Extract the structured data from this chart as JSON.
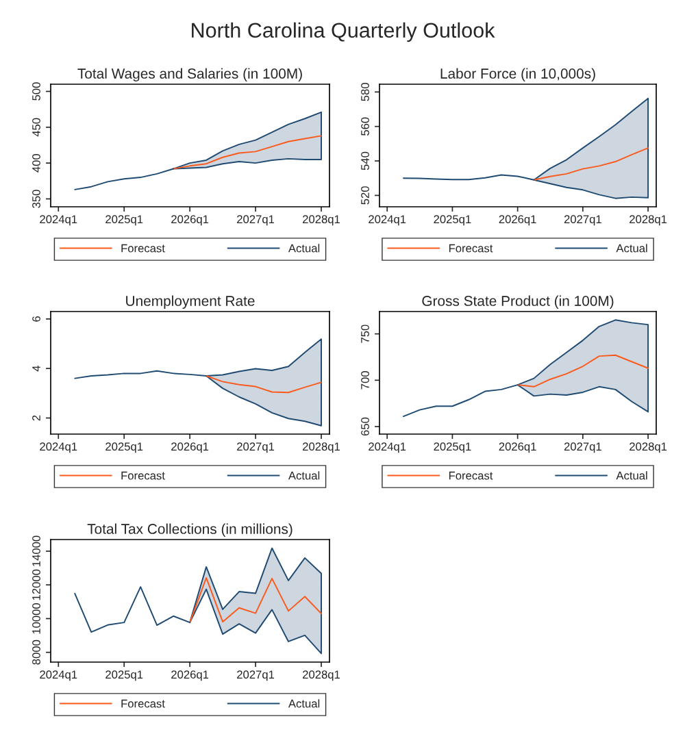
{
  "chart_data": [
    {
      "type": "line",
      "title": "Total Wages and Salaries (in 100M)",
      "annotations": [
        "North Carolina Quarterly Outlook"
      ],
      "categories": [
        "2024q1",
        null,
        null,
        null,
        "2025q1",
        null,
        null,
        null,
        "2026q1",
        null,
        null,
        null,
        "2027q1",
        null,
        null,
        null,
        "2028q1"
      ],
      "ylim": [
        339,
        510
      ],
      "yticks": [
        350,
        400,
        450,
        500
      ],
      "legend": "bottom",
      "series": [
        {
          "name": "Forecast",
          "color": "#fc5a1c",
          "values": [
            null,
            null,
            null,
            null,
            null,
            null,
            null,
            392,
            396,
            399,
            408,
            414,
            416,
            423,
            430,
            434,
            438
          ],
          "lower": [
            null,
            null,
            null,
            null,
            null,
            null,
            null,
            392,
            393,
            394,
            399,
            402,
            400,
            404,
            406,
            405,
            405
          ],
          "upper": [
            null,
            null,
            null,
            null,
            null,
            null,
            null,
            392,
            400,
            404,
            417,
            426,
            432,
            443,
            454,
            462,
            471
          ]
        },
        {
          "name": "Actual",
          "color": "#1f4a72",
          "values": [
            null,
            363,
            367,
            374,
            378,
            380,
            385,
            392,
            null,
            null,
            null,
            null,
            null,
            null,
            null,
            null,
            null
          ]
        }
      ]
    },
    {
      "type": "line",
      "title": "Labor Force (in 10,000s)",
      "categories": [
        "2024q1",
        null,
        null,
        null,
        "2025q1",
        null,
        null,
        null,
        "2026q1",
        null,
        null,
        null,
        "2027q1",
        null,
        null,
        null,
        "2028q1"
      ],
      "ylim": [
        513.4,
        584.5
      ],
      "yticks": [
        520,
        540,
        560,
        580
      ],
      "legend": "bottom",
      "series": [
        {
          "name": "Forecast",
          "color": "#fc5a1c",
          "values": [
            null,
            null,
            null,
            null,
            null,
            null,
            null,
            null,
            null,
            529,
            531,
            532.5,
            535.4,
            537.1,
            539.6,
            543.6,
            547.5
          ],
          "lower": [
            null,
            null,
            null,
            null,
            null,
            null,
            null,
            null,
            null,
            529,
            526.8,
            524.6,
            523.2,
            520.4,
            518.3,
            519,
            518.7
          ],
          "upper": [
            null,
            null,
            null,
            null,
            null,
            null,
            null,
            null,
            null,
            529,
            535.7,
            540.7,
            547.5,
            554.1,
            561,
            568.7,
            576.3
          ]
        },
        {
          "name": "Actual",
          "color": "#1f4a72",
          "values": [
            null,
            530,
            529.9,
            529.5,
            529.2,
            529.2,
            530.2,
            531.9,
            531.1,
            529,
            null,
            null,
            null,
            null,
            null,
            null,
            null
          ]
        }
      ]
    },
    {
      "type": "line",
      "title": "Unemployment Rate",
      "categories": [
        "2024q1",
        null,
        null,
        null,
        "2025q1",
        null,
        null,
        null,
        "2026q1",
        null,
        null,
        null,
        "2027q1",
        null,
        null,
        null,
        "2028q1"
      ],
      "ylim": [
        1.35,
        6.3
      ],
      "yticks": [
        2,
        4,
        6
      ],
      "legend": "bottom",
      "series": [
        {
          "name": "Forecast",
          "color": "#fc5a1c",
          "values": [
            null,
            null,
            null,
            null,
            null,
            null,
            null,
            null,
            null,
            3.7,
            3.47,
            3.35,
            3.27,
            3.05,
            3.03,
            3.24,
            3.44
          ],
          "lower": [
            null,
            null,
            null,
            null,
            null,
            null,
            null,
            null,
            null,
            3.7,
            3.2,
            2.85,
            2.57,
            2.21,
            1.98,
            1.87,
            1.69
          ],
          "upper": [
            null,
            null,
            null,
            null,
            null,
            null,
            null,
            null,
            null,
            3.7,
            3.74,
            3.88,
            3.99,
            3.92,
            4.08,
            4.65,
            5.19
          ]
        },
        {
          "name": "Actual",
          "color": "#1f4a72",
          "values": [
            null,
            3.6,
            3.7,
            3.74,
            3.8,
            3.8,
            3.9,
            3.8,
            3.76,
            3.7,
            null,
            null,
            null,
            null,
            null,
            null,
            null
          ]
        }
      ]
    },
    {
      "type": "line",
      "title": "Gross State Product (in 100M)",
      "categories": [
        "2024q1",
        null,
        null,
        null,
        "2025q1",
        null,
        null,
        null,
        "2026q1",
        null,
        null,
        null,
        "2027q1",
        null,
        null,
        null,
        "2028q1"
      ],
      "ylim": [
        641.9,
        774.1
      ],
      "yticks": [
        650,
        700,
        750
      ],
      "legend": "bottom",
      "series": [
        {
          "name": "Forecast",
          "color": "#fc5a1c",
          "values": [
            null,
            null,
            null,
            null,
            null,
            null,
            null,
            null,
            695,
            693,
            701,
            707,
            715,
            726,
            727,
            720,
            713
          ],
          "lower": [
            null,
            null,
            null,
            null,
            null,
            null,
            null,
            null,
            695,
            683,
            685,
            684,
            687,
            693,
            690,
            677,
            666
          ],
          "upper": [
            null,
            null,
            null,
            null,
            null,
            null,
            null,
            null,
            695,
            702,
            717,
            730,
            743,
            758,
            765,
            762,
            760
          ]
        },
        {
          "name": "Actual",
          "color": "#1f4a72",
          "values": [
            null,
            661,
            668,
            672,
            672,
            679,
            688,
            690,
            695,
            null,
            null,
            null,
            null,
            null,
            null,
            null,
            null
          ]
        }
      ]
    },
    {
      "type": "line",
      "title": "Total Tax Collections (in millions)",
      "categories": [
        "2024q1",
        null,
        null,
        null,
        "2025q1",
        null,
        null,
        null,
        "2026q1",
        null,
        null,
        null,
        "2027q1",
        null,
        null,
        null,
        "2028q1"
      ],
      "ylim": [
        7420,
        14690
      ],
      "yticks": [
        8000,
        10000,
        12000,
        14000
      ],
      "legend": "bottom",
      "series": [
        {
          "name": "Forecast",
          "color": "#fc5a1c",
          "values": [
            null,
            null,
            null,
            null,
            null,
            null,
            null,
            null,
            9770,
            12420,
            9810,
            10640,
            10320,
            12380,
            10450,
            11310,
            10300
          ],
          "lower": [
            null,
            null,
            null,
            null,
            null,
            null,
            null,
            null,
            9770,
            11740,
            9080,
            9690,
            9140,
            10530,
            8640,
            9010,
            7930
          ],
          "upper": [
            null,
            null,
            null,
            null,
            null,
            null,
            null,
            null,
            9770,
            13070,
            10550,
            11600,
            11500,
            14180,
            12260,
            13600,
            12680
          ]
        },
        {
          "name": "Actual",
          "color": "#1f4a72",
          "values": [
            null,
            11490,
            9200,
            9620,
            9770,
            11880,
            9610,
            10150,
            9770,
            null,
            null,
            null,
            null,
            null,
            null,
            null,
            null
          ]
        }
      ]
    }
  ]
}
